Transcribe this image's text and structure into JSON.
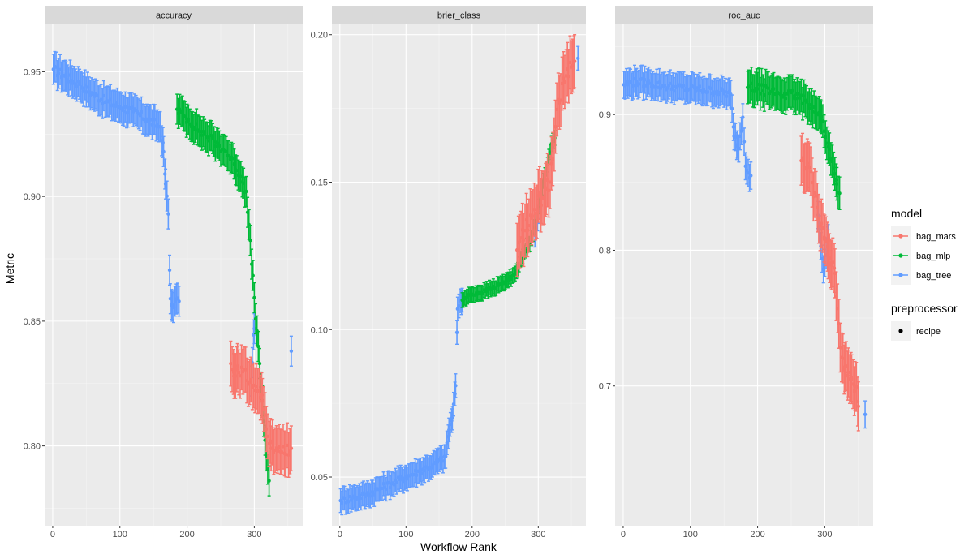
{
  "chart_data": {
    "type": "scatter",
    "subtype": "point-with-errorbars, faceted",
    "xlabel": "Workflow Rank",
    "ylabel": "Metric",
    "xlim": [
      -12,
      372
    ],
    "x_ticks": [
      0,
      100,
      200,
      300
    ],
    "grid": true,
    "legend_position": "right",
    "legends": [
      {
        "title": "model",
        "entries": [
          "bag_mars",
          "bag_mlp",
          "bag_tree"
        ],
        "shape": "point-line"
      },
      {
        "title": "preprocessor",
        "entries": [
          "recipe"
        ],
        "shape": "point"
      }
    ],
    "colors": {
      "bag_mars": "#F8766D",
      "bag_mlp": "#00BA38",
      "bag_tree": "#619CFF"
    },
    "facets": [
      {
        "strip": "accuracy",
        "ylim": [
          0.768,
          0.969
        ],
        "y_ticks": [
          0.8,
          0.85,
          0.9,
          0.95
        ],
        "y_tick_labels": [
          "0.80",
          "0.85",
          "0.90",
          "0.95"
        ],
        "series": [
          {
            "name": "bag_tree",
            "ci_halfwidth": 0.006,
            "points": [
              [
                1,
                0.951
              ],
              [
                20,
                0.948
              ],
              [
                40,
                0.945
              ],
              [
                60,
                0.941
              ],
              [
                80,
                0.938
              ],
              [
                100,
                0.936
              ],
              [
                120,
                0.934
              ],
              [
                140,
                0.931
              ],
              [
                160,
                0.928
              ],
              [
                165,
                0.918
              ],
              [
                168,
                0.905
              ],
              [
                172,
                0.893
              ],
              [
                175,
                0.859
              ],
              [
                178,
                0.856
              ],
              [
                182,
                0.858
              ],
              [
                188,
                0.858
              ],
              [
                295,
                0.826
              ],
              [
                300,
                0.847
              ],
              [
                355,
                0.838
              ]
            ]
          },
          {
            "name": "bag_mlp",
            "ci_halfwidth": 0.006,
            "points": [
              [
                185,
                0.935
              ],
              [
                200,
                0.931
              ],
              [
                220,
                0.926
              ],
              [
                240,
                0.922
              ],
              [
                258,
                0.918
              ],
              [
                270,
                0.913
              ],
              [
                280,
                0.908
              ],
              [
                288,
                0.902
              ],
              [
                318,
                0.796
              ],
              [
                322,
                0.786
              ]
            ]
          },
          {
            "name": "bag_mars",
            "ci_halfwidth": 0.009,
            "points": [
              [
                265,
                0.833
              ],
              [
                270,
                0.828
              ],
              [
                275,
                0.832
              ],
              [
                305,
                0.822
              ],
              [
                312,
                0.818
              ],
              [
                325,
                0.799
              ],
              [
                335,
                0.798
              ],
              [
                345,
                0.797
              ],
              [
                355,
                0.799
              ]
            ]
          }
        ]
      },
      {
        "strip": "brier_class",
        "ylim": [
          0.0335,
          0.2035
        ],
        "y_ticks": [
          0.05,
          0.1,
          0.15,
          0.2
        ],
        "y_tick_labels": [
          "0.05",
          "0.10",
          "0.15",
          "0.20"
        ],
        "series": [
          {
            "name": "bag_tree",
            "ci_halfwidth": 0.004,
            "points": [
              [
                1,
                0.042
              ],
              [
                20,
                0.043
              ],
              [
                40,
                0.044
              ],
              [
                60,
                0.046
              ],
              [
                80,
                0.048
              ],
              [
                100,
                0.05
              ],
              [
                120,
                0.052
              ],
              [
                140,
                0.054
              ],
              [
                160,
                0.057
              ],
              [
                165,
                0.066
              ],
              [
                170,
                0.07
              ],
              [
                175,
                0.081
              ],
              [
                178,
                0.107
              ],
              [
                185,
                0.11
              ],
              [
                295,
                0.132
              ],
              [
                300,
                0.14
              ],
              [
                360,
                0.192
              ]
            ]
          },
          {
            "name": "bag_mlp",
            "ci_halfwidth": 0.0025,
            "points": [
              [
                185,
                0.11
              ],
              [
                200,
                0.112
              ],
              [
                220,
                0.113
              ],
              [
                240,
                0.115
              ],
              [
                255,
                0.117
              ],
              [
                265,
                0.119
              ],
              [
                275,
                0.124
              ],
              [
                285,
                0.129
              ],
              [
                290,
                0.131
              ],
              [
                320,
                0.163
              ],
              [
                325,
                0.165
              ]
            ]
          },
          {
            "name": "bag_mars",
            "ci_halfwidth": 0.009,
            "points": [
              [
                268,
                0.127
              ],
              [
                272,
                0.13
              ],
              [
                305,
                0.145
              ],
              [
                312,
                0.148
              ],
              [
                318,
                0.15
              ],
              [
                330,
                0.178
              ],
              [
                340,
                0.184
              ],
              [
                350,
                0.189
              ],
              [
                355,
                0.191
              ]
            ]
          }
        ]
      },
      {
        "strip": "roc_auc",
        "ylim": [
          0.597,
          0.9665
        ],
        "y_ticks": [
          0.7,
          0.8,
          0.9
        ],
        "y_tick_labels": [
          "0.7",
          "0.8",
          "0.9"
        ],
        "series": [
          {
            "name": "bag_tree",
            "ci_halfwidth": 0.01,
            "points": [
              [
                1,
                0.922
              ],
              [
                20,
                0.924
              ],
              [
                40,
                0.923
              ],
              [
                60,
                0.921
              ],
              [
                80,
                0.92
              ],
              [
                100,
                0.919
              ],
              [
                120,
                0.918
              ],
              [
                140,
                0.917
              ],
              [
                160,
                0.915
              ],
              [
                165,
                0.884
              ],
              [
                170,
                0.878
              ],
              [
                172,
                0.875
              ],
              [
                178,
                0.898
              ],
              [
                182,
                0.862
              ],
              [
                186,
                0.857
              ],
              [
                190,
                0.855
              ],
              [
                290,
                0.826
              ],
              [
                298,
                0.786
              ],
              [
                305,
                0.809
              ],
              [
                360,
                0.679
              ]
            ]
          },
          {
            "name": "bag_mlp",
            "ci_halfwidth": 0.012,
            "points": [
              [
                185,
                0.92
              ],
              [
                200,
                0.919
              ],
              [
                220,
                0.917
              ],
              [
                240,
                0.915
              ],
              [
                255,
                0.914
              ],
              [
                280,
                0.907
              ],
              [
                290,
                0.9
              ],
              [
                295,
                0.898
              ],
              [
                318,
                0.849
              ],
              [
                322,
                0.842
              ]
            ]
          },
          {
            "name": "bag_mars",
            "ci_halfwidth": 0.018,
            "points": [
              [
                265,
                0.866
              ],
              [
                270,
                0.86
              ],
              [
                275,
                0.862
              ],
              [
                300,
                0.808
              ],
              [
                305,
                0.797
              ],
              [
                310,
                0.789
              ],
              [
                315,
                0.783
              ],
              [
                325,
                0.721
              ],
              [
                330,
                0.714
              ],
              [
                335,
                0.71
              ],
              [
                340,
                0.705
              ],
              [
                345,
                0.7
              ],
              [
                350,
                0.685
              ]
            ]
          }
        ]
      }
    ]
  }
}
